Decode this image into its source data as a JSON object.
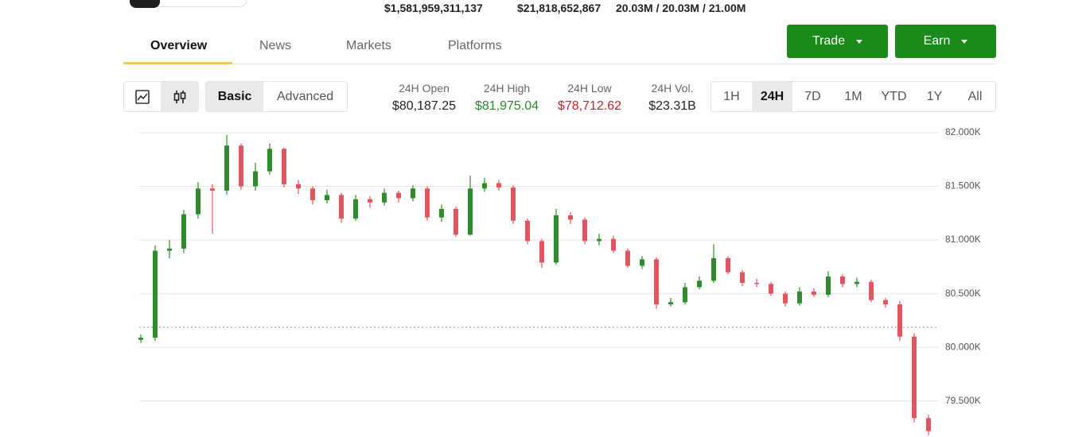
{
  "header": {
    "stats": [
      "$1,581,959,311,137",
      "$21,818,652,867",
      "20.03M / 20.03M / 21.00M"
    ]
  },
  "tabs": [
    "Overview",
    "News",
    "Markets",
    "Platforms"
  ],
  "buttons": [
    "Trade",
    "Earn"
  ],
  "view_toggle": [
    "Basic",
    "Advanced"
  ],
  "stats": [
    {
      "label": "24H Open",
      "value": "$80,187.25"
    },
    {
      "label": "24H High",
      "value": "$81,975.04"
    },
    {
      "label": "24H Low",
      "value": "$78,712.62"
    },
    {
      "label": "24H Vol.",
      "value": "$23.31B"
    }
  ],
  "ranges": [
    "1H",
    "24H",
    "7D",
    "1M",
    "YTD",
    "1Y",
    "All"
  ],
  "chart_data": {
    "type": "candlestick",
    "up_color": "#2e8b2e",
    "down_color": "#e2545e",
    "grid": true,
    "ylim": [
      79164,
      82126
    ],
    "yticks": [
      {
        "value": 82000,
        "label": "82.000K"
      },
      {
        "value": 81500,
        "label": "81.500K"
      },
      {
        "value": 81000,
        "label": "81.000K"
      },
      {
        "value": 80500,
        "label": "80.500K"
      },
      {
        "value": 80000,
        "label": "80.000K"
      },
      {
        "value": 79500,
        "label": "79.500K"
      }
    ],
    "reference_line": 80187.25,
    "open": [
      80070,
      80090,
      80900,
      80920,
      81240,
      81480,
      81460,
      81880,
      81500,
      81640,
      81850,
      81520,
      81480,
      81370,
      81420,
      81200,
      81380,
      81350,
      81440,
      81390,
      81480,
      81210,
      81290,
      81050,
      81480,
      81530,
      81490,
      81180,
      80990,
      80790,
      81230,
      81190,
      80990,
      81010,
      80900,
      80760,
      80820,
      80400,
      80420,
      80560,
      80620,
      80830,
      80700,
      80600,
      80590,
      80500,
      80410,
      80520,
      80490,
      80660,
      80590,
      80610,
      80440,
      80400,
      80100,
      79340
    ],
    "high": [
      80120,
      80950,
      81000,
      81280,
      81540,
      81520,
      81980,
      81900,
      81720,
      81900,
      81860,
      81560,
      81500,
      81470,
      81440,
      81420,
      81410,
      81480,
      81460,
      81510,
      81500,
      81330,
      81310,
      81600,
      81580,
      81560,
      81510,
      81200,
      81010,
      81290,
      81260,
      81210,
      81060,
      81040,
      80920,
      80850,
      80840,
      80460,
      80600,
      80660,
      80960,
      80850,
      80720,
      80640,
      80610,
      80520,
      80560,
      80550,
      80710,
      80680,
      80650,
      80630,
      80460,
      80430,
      80130,
      79370
    ],
    "low": [
      80040,
      80060,
      80830,
      80880,
      81200,
      81060,
      81420,
      81470,
      81460,
      81610,
      81490,
      81430,
      81330,
      81340,
      81160,
      81180,
      81300,
      81320,
      81350,
      81360,
      81180,
      81170,
      81030,
      81040,
      81450,
      81460,
      81150,
      80960,
      80740,
      80770,
      81150,
      80960,
      80950,
      80880,
      80740,
      80730,
      80360,
      80380,
      80400,
      80540,
      80600,
      80680,
      80570,
      80560,
      80480,
      80380,
      80390,
      80470,
      80470,
      80560,
      80560,
      80420,
      80370,
      80060,
      79300,
      79180
    ],
    "close": [
      80090,
      80900,
      80920,
      81240,
      81480,
      81460,
      81880,
      81500,
      81640,
      81850,
      81520,
      81480,
      81370,
      81420,
      81200,
      81380,
      81350,
      81440,
      81390,
      81480,
      81210,
      81290,
      81050,
      81480,
      81530,
      81490,
      81180,
      80990,
      80790,
      81230,
      81190,
      80990,
      81010,
      80900,
      80760,
      80820,
      80400,
      80420,
      80560,
      80620,
      80830,
      80700,
      80600,
      80590,
      80500,
      80410,
      80520,
      80490,
      80660,
      80590,
      80610,
      80440,
      80400,
      80100,
      79340,
      79220
    ]
  }
}
